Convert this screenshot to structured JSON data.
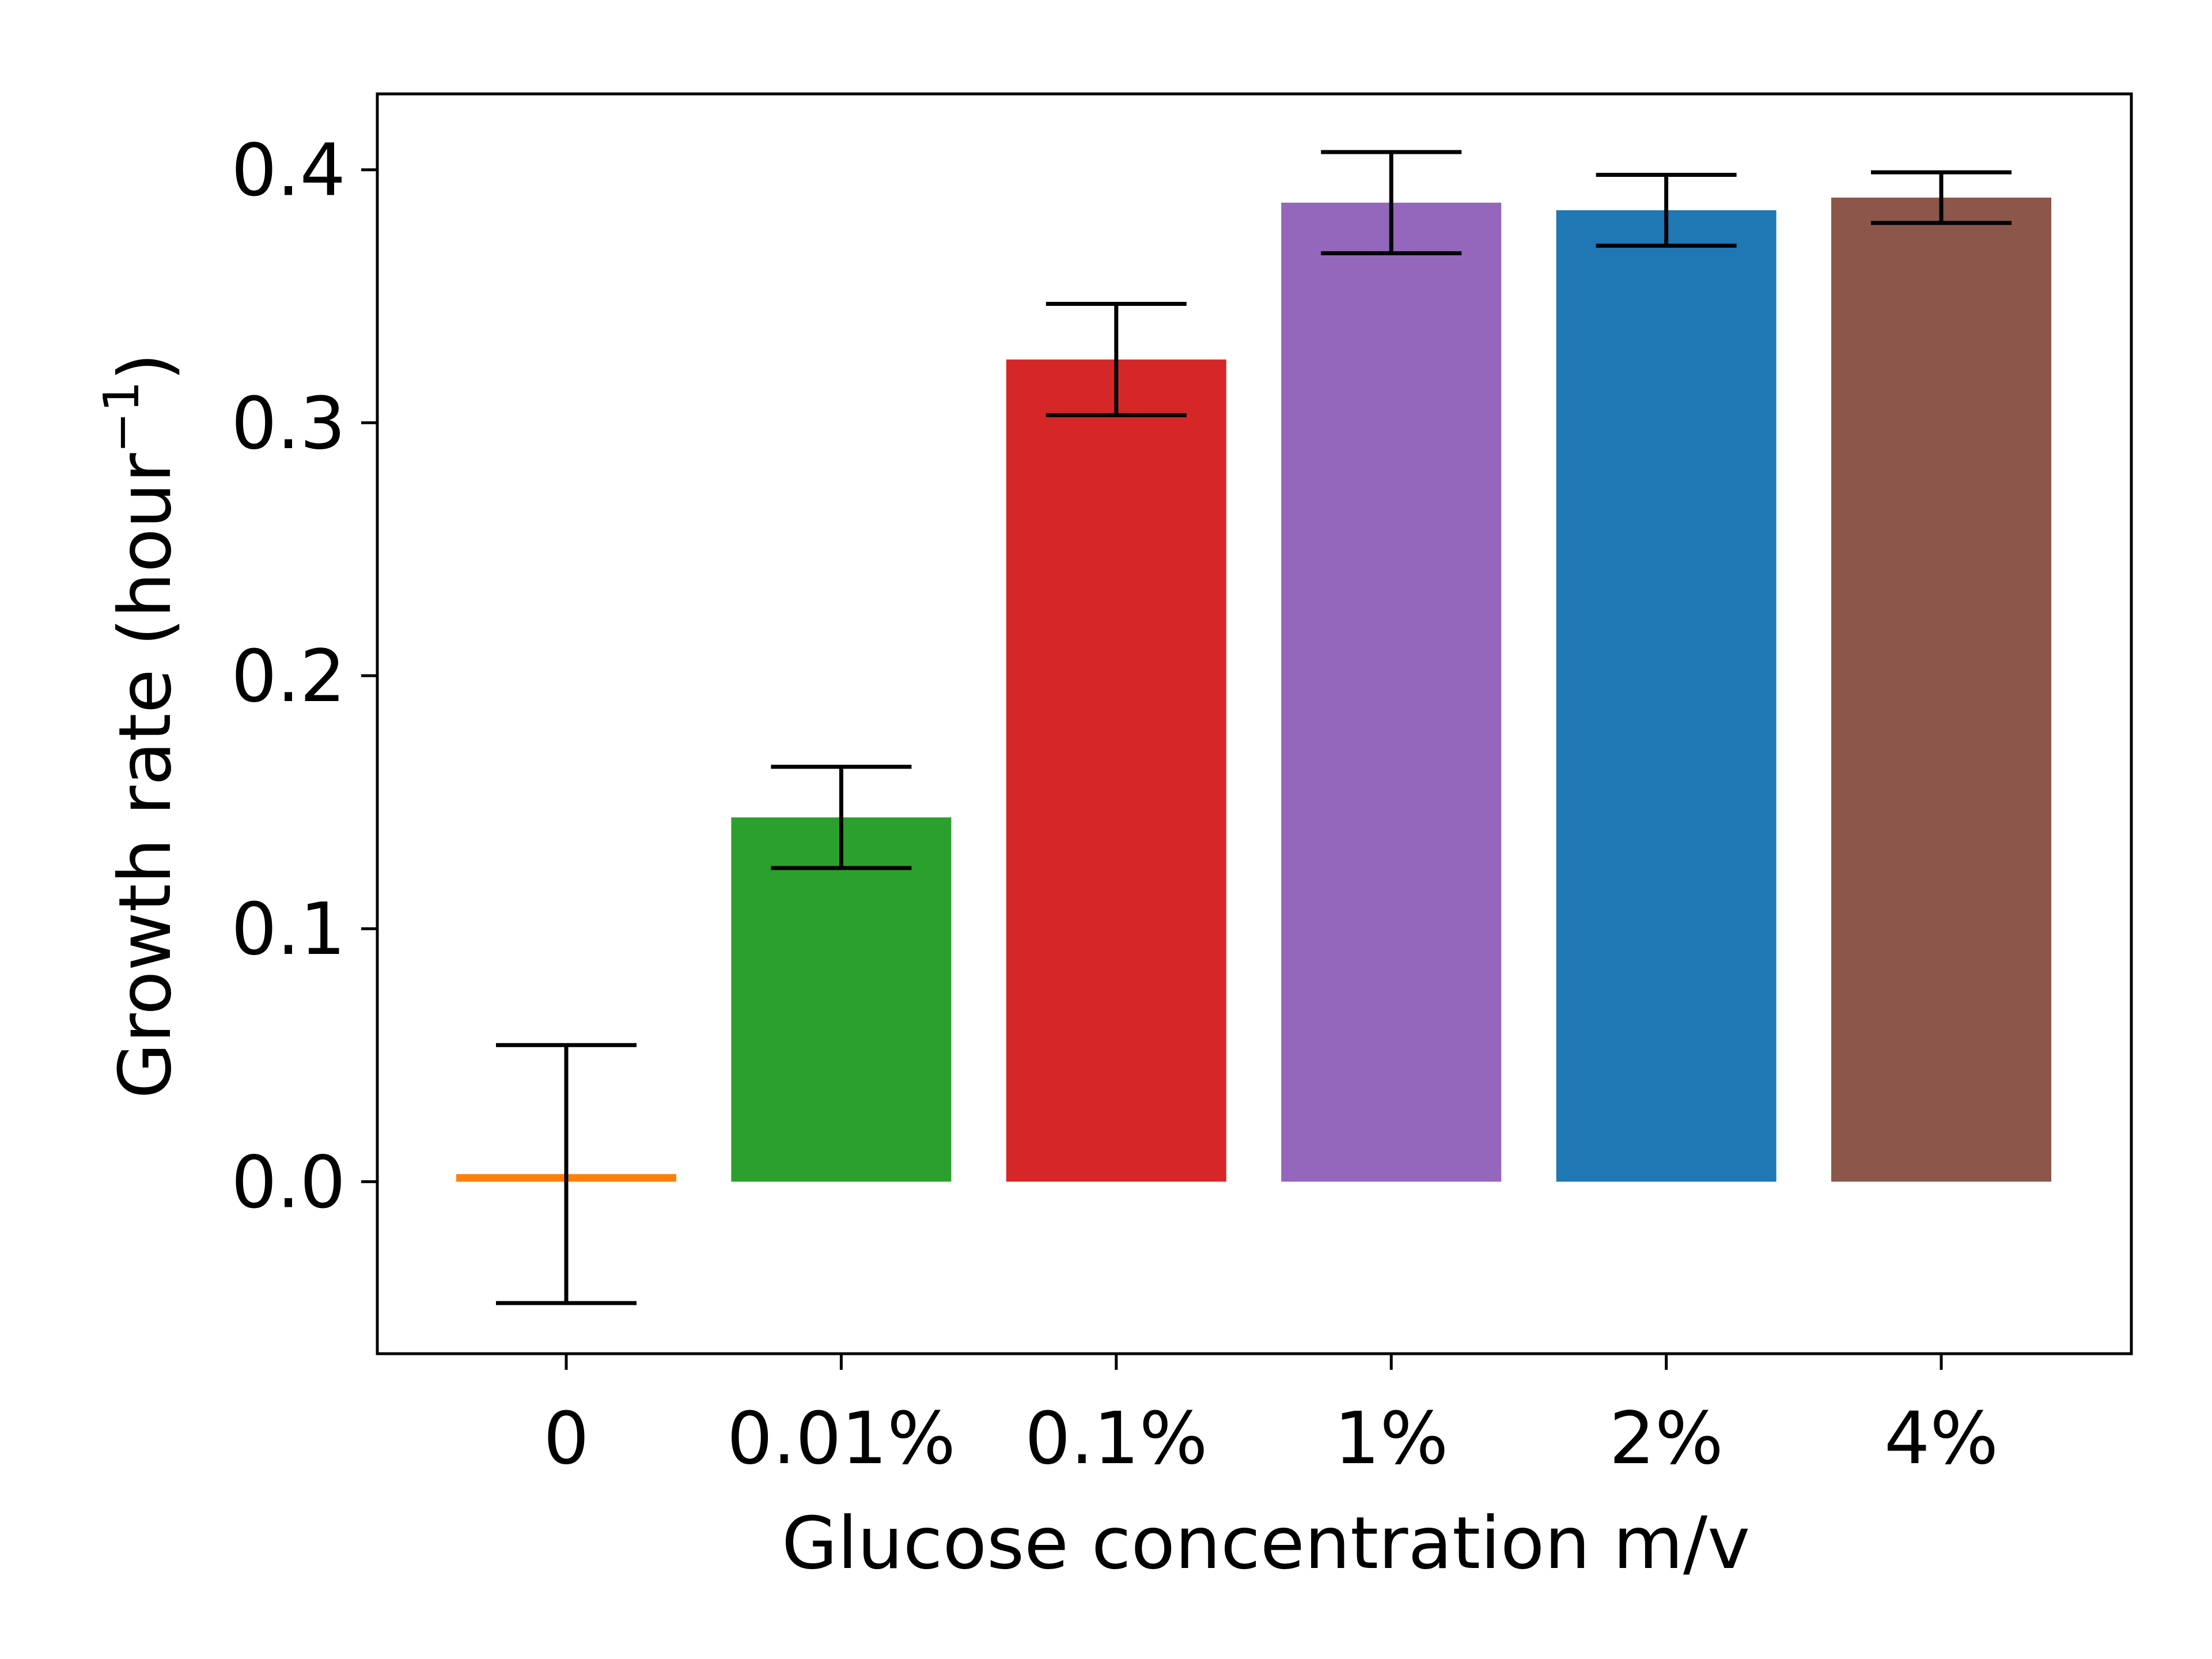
{
  "chart_data": {
    "type": "bar",
    "categories": [
      "0",
      "0.01%",
      "0.1%",
      "1%",
      "2%",
      "4%"
    ],
    "values": [
      0.003,
      0.144,
      0.325,
      0.387,
      0.384,
      0.389
    ],
    "errors": [
      0.051,
      0.02,
      0.022,
      0.02,
      0.014,
      0.01
    ],
    "colors": [
      "#ff7f0e",
      "#2ca02c",
      "#d62728",
      "#9467bd",
      "#1f77b4",
      "#8c564b"
    ],
    "xlabel": "Glucose concentration m/v",
    "ylabel": "Growth rate (hour",
    "ylabel_superscript": "−1",
    "ylabel_close": ")",
    "ylim": [
      -0.068,
      0.43
    ],
    "yticks": [
      0.0,
      0.1,
      0.2,
      0.3,
      0.4
    ],
    "ytick_labels": [
      "0.0",
      "0.1",
      "0.2",
      "0.3",
      "0.4"
    ],
    "grid": false,
    "legend": "none"
  }
}
